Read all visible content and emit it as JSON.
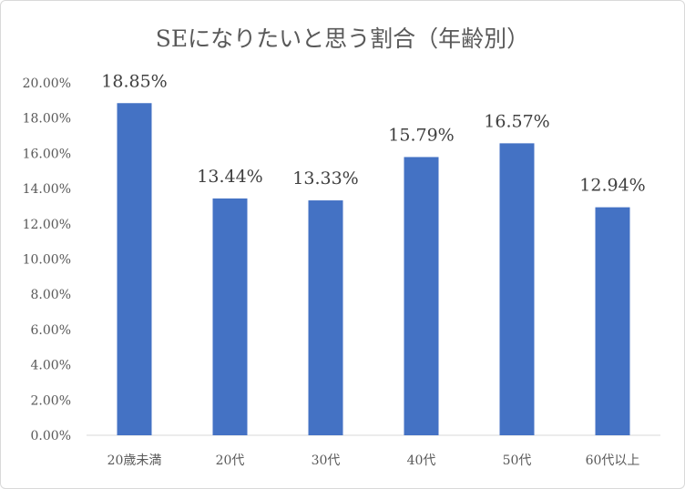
{
  "chart_data": {
    "type": "bar",
    "title": "SEになりたいと思う割合（年齢別）",
    "xlabel": "",
    "ylabel": "",
    "categories": [
      "20歳未満",
      "20代",
      "30代",
      "40代",
      "50代",
      "60代以上"
    ],
    "values": [
      18.85,
      13.44,
      13.33,
      15.79,
      16.57,
      12.94
    ],
    "data_labels": [
      "18.85%",
      "13.44%",
      "13.33%",
      "15.79%",
      "16.57%",
      "12.94%"
    ],
    "ylim": [
      0,
      20
    ],
    "yticks": [
      0,
      2,
      4,
      6,
      8,
      10,
      12,
      14,
      16,
      18,
      20
    ],
    "ytick_labels": [
      "0.00%",
      "2.00%",
      "4.00%",
      "6.00%",
      "8.00%",
      "10.00%",
      "12.00%",
      "14.00%",
      "16.00%",
      "18.00%",
      "20.00%"
    ],
    "grid": false,
    "legend": "none",
    "bar_color": "#4472C4",
    "axis_color": "#d9d9d9"
  }
}
